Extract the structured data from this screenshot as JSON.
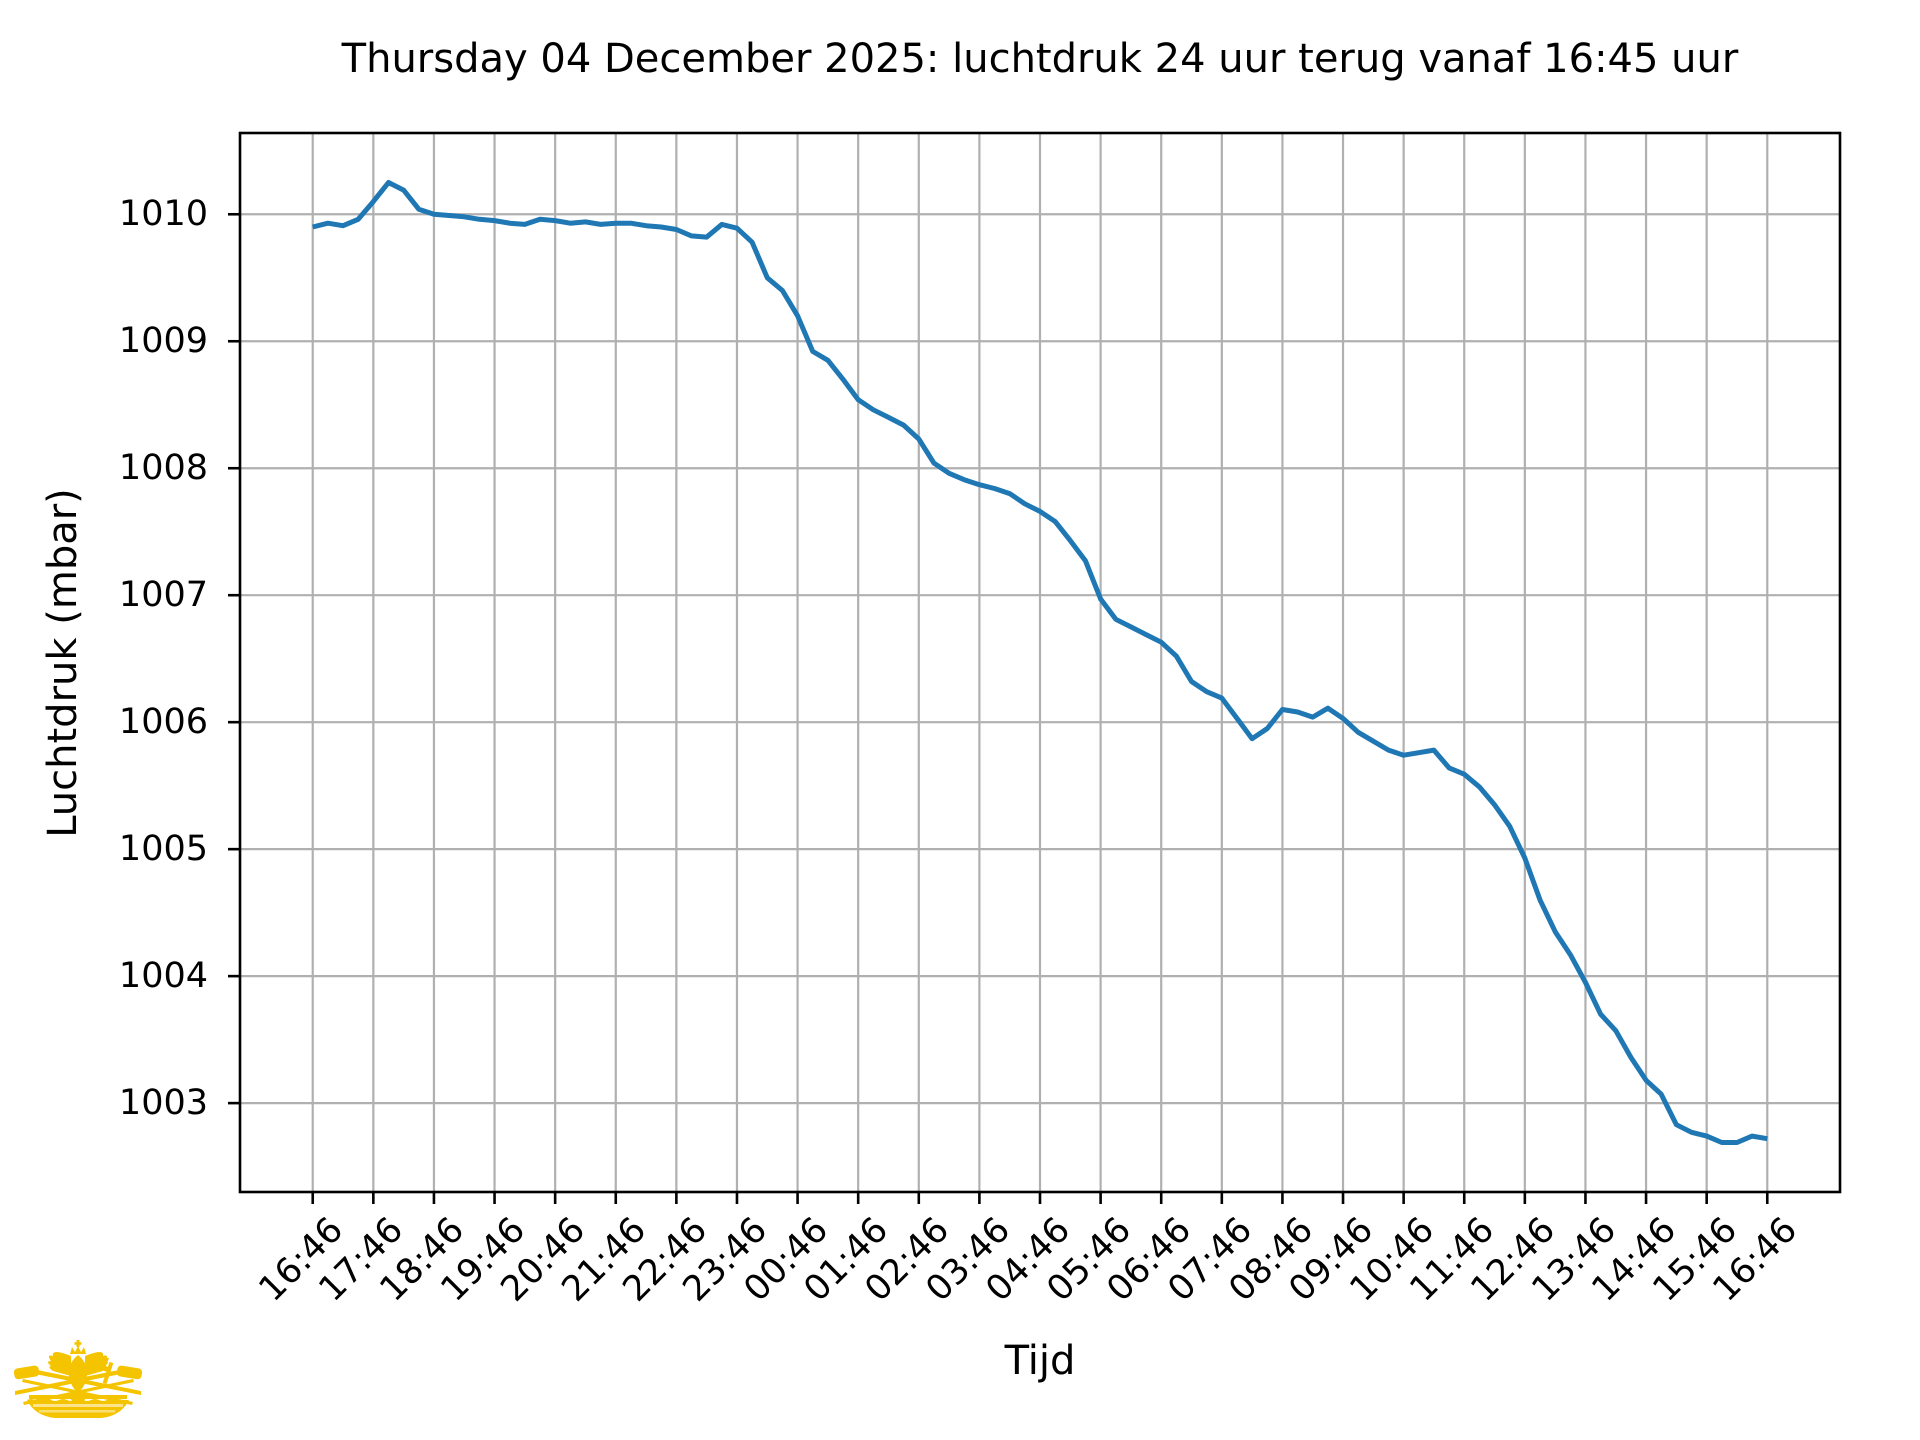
{
  "title": "Thursday 04 December 2025: luchtdruk 24 uur terug vanaf 16:45 uur",
  "chart_data": {
    "type": "line",
    "title": "Thursday 04 December 2025: luchtdruk 24 uur terug vanaf 16:45 uur",
    "xlabel": "Tijd",
    "ylabel": "Luchtdruk (mbar)",
    "x_tick_labels": [
      "16:46",
      "17:46",
      "18:46",
      "19:46",
      "20:46",
      "21:46",
      "22:46",
      "23:46",
      "00:46",
      "01:46",
      "02:46",
      "03:46",
      "04:46",
      "05:46",
      "06:46",
      "07:46",
      "08:46",
      "09:46",
      "10:46",
      "11:46",
      "12:46",
      "13:46",
      "14:46",
      "15:46",
      "16:46"
    ],
    "y_ticks": [
      1003,
      1004,
      1005,
      1006,
      1007,
      1008,
      1009,
      1010
    ],
    "x_start": "16:46",
    "x_step_minutes": 15,
    "values": [
      1009.9,
      1009.93,
      1009.91,
      1009.96,
      1010.1,
      1010.25,
      1010.19,
      1010.04,
      1010.0,
      1009.99,
      1009.98,
      1009.96,
      1009.95,
      1009.93,
      1009.92,
      1009.96,
      1009.95,
      1009.93,
      1009.94,
      1009.92,
      1009.93,
      1009.93,
      1009.91,
      1009.9,
      1009.88,
      1009.83,
      1009.82,
      1009.92,
      1009.89,
      1009.78,
      1009.5,
      1009.4,
      1009.2,
      1008.92,
      1008.85,
      1008.7,
      1008.54,
      1008.46,
      1008.4,
      1008.34,
      1008.23,
      1008.04,
      1007.96,
      1007.91,
      1007.87,
      1007.84,
      1007.8,
      1007.72,
      1007.66,
      1007.58,
      1007.43,
      1007.27,
      1006.97,
      1006.81,
      1006.75,
      1006.69,
      1006.63,
      1006.52,
      1006.32,
      1006.24,
      1006.19,
      1006.03,
      1005.87,
      1005.95,
      1006.1,
      1006.08,
      1006.04,
      1006.11,
      1006.03,
      1005.92,
      1005.85,
      1005.78,
      1005.74,
      1005.76,
      1005.78,
      1005.64,
      1005.59,
      1005.49,
      1005.35,
      1005.18,
      1004.93,
      1004.6,
      1004.35,
      1004.17,
      1003.95,
      1003.7,
      1003.57,
      1003.36,
      1003.18,
      1003.07,
      1002.83,
      1002.77,
      1002.74,
      1002.69,
      1002.69,
      1002.74,
      1002.72
    ],
    "xlim_hours": [
      -1.2,
      25.2
    ],
    "ylim": [
      1002.3,
      1010.64
    ],
    "grid": true,
    "legend": "none",
    "line_color": "#1f77b4",
    "grid_color": "#b0b0b0",
    "axis_color": "#000000"
  },
  "logo": {
    "name": "rowing-club-crest",
    "color": "#F5C400"
  }
}
